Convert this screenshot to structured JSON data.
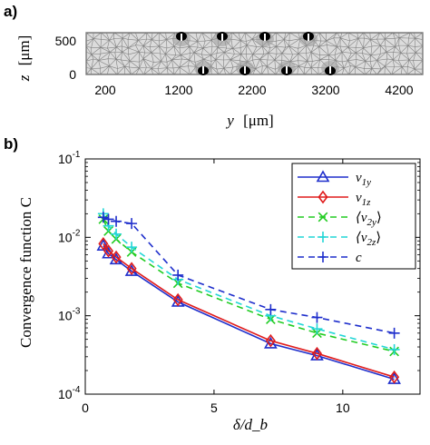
{
  "panel_a": {
    "label": "a)",
    "ylabel_var": "z",
    "ylabel_unit": "[μm]",
    "xlabel_var": "y",
    "xlabel_unit": "[μm]",
    "yticks": [
      "500",
      "0"
    ],
    "xticks": [
      "200",
      "1200",
      "2200",
      "3200",
      "4200"
    ],
    "mesh_color": "#808080"
  },
  "panel_b": {
    "label": "b)",
    "ylabel": "Convergence function C",
    "xlabel": "δ/d_b",
    "xticks": [
      "0",
      "5",
      "10"
    ],
    "yticks": [
      "10^-4",
      "10^-3",
      "10^-2",
      "10^-1"
    ]
  },
  "chart_data": [
    {
      "type": "mesh",
      "xlabel": "y [μm]",
      "ylabel": "z [μm]",
      "xticks": [
        200,
        1200,
        2200,
        3200,
        4200
      ],
      "yticks": [
        0,
        500
      ]
    },
    {
      "type": "line",
      "xlabel": "δ/d_b",
      "ylabel": "Convergence function C",
      "xlim": [
        0,
        13
      ],
      "ylim": [
        0.0001,
        0.1
      ],
      "yscale": "log",
      "legend_position": "top-right",
      "series": [
        {
          "name": "v_{1y}",
          "color": "#1f2fcc",
          "linestyle": "solid",
          "marker": "triangle",
          "x": [
            0.7,
            0.9,
            1.2,
            1.8,
            3.6,
            7.2,
            9.0,
            12.0
          ],
          "y": [
            0.0078,
            0.0062,
            0.0052,
            0.0037,
            0.0015,
            0.00044,
            0.00031,
            0.000155
          ]
        },
        {
          "name": "v_{1z}",
          "color": "#e01b1b",
          "linestyle": "solid",
          "marker": "diamond",
          "x": [
            0.7,
            0.9,
            1.2,
            1.8,
            3.6,
            7.2,
            9.0,
            12.0
          ],
          "y": [
            0.0083,
            0.0067,
            0.0056,
            0.004,
            0.0016,
            0.00048,
            0.00033,
            0.000165
          ]
        },
        {
          "name": "⟨v_{2y}⟩",
          "color": "#22cc22",
          "linestyle": "dashed",
          "marker": "x",
          "x": [
            0.7,
            0.9,
            1.2,
            1.8,
            3.6,
            7.2,
            9.0,
            12.0
          ],
          "y": [
            0.017,
            0.012,
            0.0095,
            0.0065,
            0.0026,
            0.0009,
            0.0006,
            0.00035
          ]
        },
        {
          "name": "⟨v_{2z}⟩",
          "color": "#22d6d6",
          "linestyle": "dashed",
          "marker": "plus",
          "x": [
            0.7,
            0.9,
            1.2,
            1.8,
            3.6,
            7.2,
            9.0,
            12.0
          ],
          "y": [
            0.02,
            0.014,
            0.011,
            0.0075,
            0.0029,
            0.001,
            0.00068,
            0.00037
          ]
        },
        {
          "name": "c",
          "color": "#1f2fcc",
          "linestyle": "dashed",
          "marker": "plus",
          "x": [
            0.7,
            0.9,
            1.2,
            1.8,
            3.6,
            7.2,
            9.0,
            12.0
          ],
          "y": [
            0.018,
            0.017,
            0.016,
            0.015,
            0.0033,
            0.0012,
            0.00095,
            0.0006
          ]
        }
      ]
    }
  ]
}
